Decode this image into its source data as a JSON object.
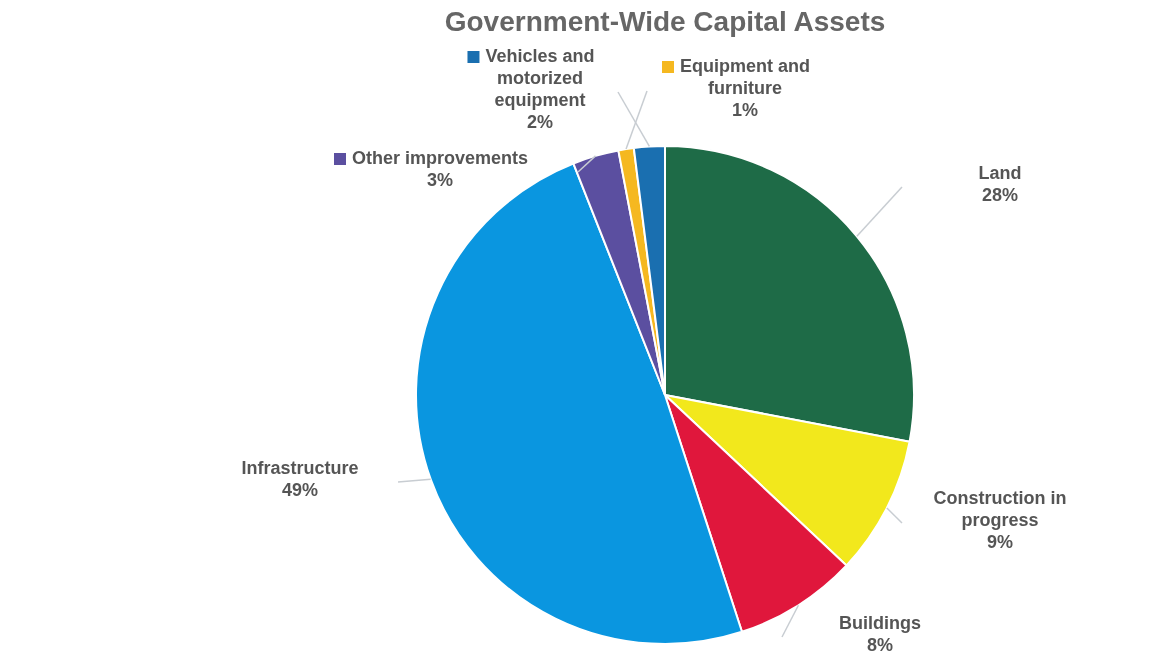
{
  "chart_data": {
    "type": "pie",
    "title": "Government-Wide Capital Assets",
    "categories": [
      "Land",
      "Construction in progress",
      "Buildings",
      "Infrastructure",
      "Other improvements",
      "Equipment and furniture",
      "Vehicles and motorized equipment"
    ],
    "values": [
      28,
      9,
      8,
      49,
      3,
      1,
      2
    ],
    "value_labels": [
      "28%",
      "9%",
      "8%",
      "49%",
      "3%",
      "1%",
      "2%"
    ],
    "colors": [
      "#1e6b47",
      "#f2e81c",
      "#e0173c",
      "#0a96e0",
      "#5b4fa0",
      "#f5b820",
      "#1a6fb0"
    ],
    "legend": "top"
  }
}
